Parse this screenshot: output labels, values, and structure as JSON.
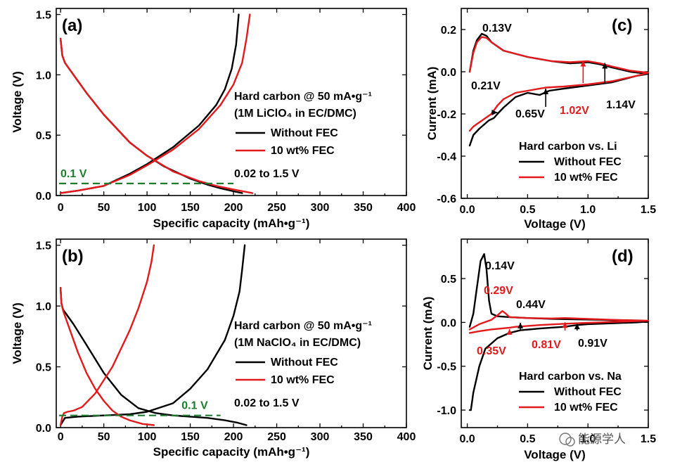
{
  "colors": {
    "black": "#000000",
    "red": "#e31a1c",
    "green": "#1b7d2e",
    "axis": "#000000"
  },
  "watermark": "能源学人",
  "chart_data": [
    {
      "id": "a",
      "type": "line",
      "panel_label": "(a)",
      "xlabel": "Specific capacity (mAh•g⁻¹)",
      "ylabel": "Voltage (V)",
      "xlim": [
        -5,
        400
      ],
      "ylim": [
        0,
        1.55
      ],
      "xticks": [
        0,
        50,
        100,
        150,
        200,
        250,
        300,
        350,
        400
      ],
      "yticks": [
        0.0,
        0.5,
        1.0,
        1.5
      ],
      "ytick_labels": [
        "0.0",
        "0.5",
        "1.0",
        "1.5"
      ],
      "legend": {
        "title": "Hard carbon @ 50 mA•g⁻¹",
        "subtitle": "(1M LiClO₄ in EC/DMC)",
        "items": [
          "Without FEC",
          "10 wt% FEC"
        ],
        "footer": "0.02 to 1.5 V"
      },
      "reference_line": {
        "y": 0.1,
        "label": "0.1 V"
      },
      "series": [
        {
          "name": "Without FEC (discharge)",
          "color": "black",
          "x": [
            0,
            2,
            5,
            10,
            20,
            30,
            50,
            80,
            100,
            120,
            150,
            170,
            185,
            200,
            210
          ],
          "y": [
            1.3,
            1.16,
            1.1,
            1.05,
            0.95,
            0.85,
            0.67,
            0.44,
            0.33,
            0.24,
            0.14,
            0.09,
            0.06,
            0.035,
            0.02
          ]
        },
        {
          "name": "Without FEC (charge)",
          "color": "black",
          "x": [
            0,
            20,
            50,
            80,
            100,
            130,
            160,
            180,
            190,
            198,
            203,
            206
          ],
          "y": [
            0.02,
            0.04,
            0.08,
            0.18,
            0.26,
            0.4,
            0.58,
            0.75,
            0.88,
            1.05,
            1.25,
            1.5
          ]
        },
        {
          "name": "10 wt% FEC (discharge)",
          "color": "red",
          "x": [
            0,
            2,
            5,
            10,
            20,
            30,
            50,
            80,
            100,
            130,
            160,
            180,
            200,
            215,
            222
          ],
          "y": [
            1.3,
            1.16,
            1.1,
            1.05,
            0.95,
            0.85,
            0.67,
            0.44,
            0.33,
            0.2,
            0.12,
            0.08,
            0.05,
            0.03,
            0.02
          ]
        },
        {
          "name": "10 wt% FEC (charge)",
          "color": "red",
          "x": [
            0,
            20,
            50,
            80,
            100,
            130,
            160,
            185,
            200,
            210,
            215,
            219
          ],
          "y": [
            0.02,
            0.04,
            0.08,
            0.17,
            0.25,
            0.38,
            0.55,
            0.75,
            0.92,
            1.1,
            1.3,
            1.5
          ]
        }
      ]
    },
    {
      "id": "b",
      "type": "line",
      "panel_label": "(b)",
      "xlabel": "Specific capacity (mAh•g⁻¹)",
      "ylabel": "Voltage (V)",
      "xlim": [
        -5,
        400
      ],
      "ylim": [
        0,
        1.55
      ],
      "xticks": [
        0,
        50,
        100,
        150,
        200,
        250,
        300,
        350,
        400
      ],
      "yticks": [
        0.0,
        0.5,
        1.0,
        1.5
      ],
      "ytick_labels": [
        "0.0",
        "0.5",
        "1.0",
        "1.5"
      ],
      "legend": {
        "title": "Hard carbon @ 50 mA•g⁻¹",
        "subtitle": "(1M NaClO₄ in EC/DMC)",
        "items": [
          "Without FEC",
          "10 wt% FEC"
        ],
        "footer": "0.02 to 1.5 V"
      },
      "reference_line": {
        "y": 0.1,
        "label": "0.1 V"
      },
      "series": [
        {
          "name": "Without FEC (discharge)",
          "color": "black",
          "x": [
            0,
            1,
            3,
            6,
            15,
            30,
            50,
            70,
            90,
            110,
            130,
            150,
            170,
            190,
            205,
            215
          ],
          "y": [
            1.15,
            1.02,
            0.97,
            0.94,
            0.85,
            0.68,
            0.45,
            0.27,
            0.16,
            0.12,
            0.1,
            0.09,
            0.08,
            0.06,
            0.04,
            0.02
          ]
        },
        {
          "name": "Without FEC (charge)",
          "color": "black",
          "x": [
            0,
            5,
            20,
            50,
            80,
            100,
            130,
            150,
            170,
            190,
            200,
            207,
            210,
            213
          ],
          "y": [
            0.02,
            0.08,
            0.09,
            0.1,
            0.11,
            0.13,
            0.2,
            0.32,
            0.48,
            0.72,
            0.92,
            1.12,
            1.3,
            1.5
          ]
        },
        {
          "name": "10 wt% FEC (discharge)",
          "color": "red",
          "x": [
            0,
            1,
            3,
            6,
            10,
            20,
            30,
            40,
            50,
            60,
            70,
            80,
            95,
            108
          ],
          "y": [
            1.15,
            1.02,
            0.96,
            0.9,
            0.82,
            0.62,
            0.45,
            0.32,
            0.22,
            0.14,
            0.09,
            0.06,
            0.03,
            0.02
          ]
        },
        {
          "name": "10 wt% FEC (charge)",
          "color": "red",
          "x": [
            0,
            2,
            4,
            8,
            15,
            25,
            40,
            60,
            80,
            90,
            100,
            105,
            108
          ],
          "y": [
            0.02,
            0.09,
            0.12,
            0.13,
            0.14,
            0.17,
            0.28,
            0.5,
            0.8,
            0.98,
            1.2,
            1.36,
            1.5
          ]
        }
      ]
    },
    {
      "id": "c",
      "type": "line",
      "panel_label": "(c)",
      "xlabel": "Voltage (V)",
      "ylabel": "Current (mA)",
      "xlim": [
        -0.05,
        1.5
      ],
      "ylim": [
        -0.6,
        0.3
      ],
      "xticks": [
        0.0,
        0.5,
        1.0,
        1.5
      ],
      "xtick_labels": [
        "0.0",
        "0.5",
        "1.0",
        "1.5"
      ],
      "yticks": [
        -0.6,
        -0.4,
        -0.2,
        0.0,
        0.2
      ],
      "ytick_labels": [
        "-0.6",
        "-0.4",
        "-0.2",
        "0.0",
        "0.2"
      ],
      "legend": {
        "title": "Hard carbon vs. Li",
        "items": [
          "Without FEC",
          "10 wt% FEC"
        ]
      },
      "annotations": [
        {
          "text": "0.13V",
          "color": "black"
        },
        {
          "text": "0.21V",
          "color": "black"
        },
        {
          "text": "0.65V",
          "color": "black"
        },
        {
          "text": "1.02V",
          "color": "red"
        },
        {
          "text": "1.14V",
          "color": "black"
        }
      ],
      "series": [
        {
          "name": "Without FEC",
          "color": "black",
          "x": [
            0.02,
            0.05,
            0.08,
            0.12,
            0.16,
            0.2,
            0.3,
            0.5,
            0.7,
            0.85,
            1.0,
            1.1,
            1.2,
            1.35,
            1.5,
            1.4,
            1.2,
            1.0,
            0.8,
            0.68,
            0.6,
            0.5,
            0.4,
            0.3,
            0.25,
            0.22,
            0.18,
            0.1,
            0.05,
            0.02
          ],
          "y": [
            0.0,
            0.1,
            0.15,
            0.18,
            0.17,
            0.14,
            0.1,
            0.07,
            0.05,
            0.04,
            0.045,
            0.035,
            0.02,
            0.0,
            -0.01,
            -0.02,
            -0.05,
            -0.065,
            -0.08,
            -0.09,
            -0.11,
            -0.1,
            -0.12,
            -0.17,
            -0.2,
            -0.22,
            -0.23,
            -0.27,
            -0.3,
            -0.35
          ]
        },
        {
          "name": "10 wt% FEC",
          "color": "red",
          "x": [
            0.02,
            0.05,
            0.08,
            0.12,
            0.16,
            0.2,
            0.3,
            0.5,
            0.7,
            0.85,
            1.0,
            1.1,
            1.2,
            1.35,
            1.5,
            1.4,
            1.2,
            1.0,
            0.8,
            0.65,
            0.5,
            0.4,
            0.3,
            0.25,
            0.2,
            0.15,
            0.1,
            0.05,
            0.02
          ],
          "y": [
            0.0,
            0.09,
            0.14,
            0.165,
            0.16,
            0.14,
            0.1,
            0.07,
            0.05,
            0.045,
            0.05,
            0.04,
            0.025,
            0.005,
            -0.005,
            -0.02,
            -0.045,
            -0.06,
            -0.07,
            -0.075,
            -0.09,
            -0.1,
            -0.13,
            -0.16,
            -0.2,
            -0.22,
            -0.24,
            -0.26,
            -0.28
          ]
        }
      ]
    },
    {
      "id": "d",
      "type": "line",
      "panel_label": "(d)",
      "xlabel": "Voltage (V)",
      "ylabel": "Current (mA)",
      "xlim": [
        -0.05,
        1.5
      ],
      "ylim": [
        -1.2,
        0.95
      ],
      "xticks": [
        0.0,
        0.5,
        1.0,
        1.5
      ],
      "xtick_labels": [
        "0.0",
        "0.5",
        "1.0",
        "1.5"
      ],
      "yticks": [
        -1.0,
        -0.5,
        0.0,
        0.5
      ],
      "ytick_labels": [
        "-1.0",
        "-0.5",
        "0.0",
        "0.5"
      ],
      "legend": {
        "title": "Hard carbon vs. Na",
        "items": [
          "Without FEC",
          "10 wt% FEC"
        ]
      },
      "annotations": [
        {
          "text": "0.14V",
          "color": "black"
        },
        {
          "text": "0.29V",
          "color": "red"
        },
        {
          "text": "0.44V",
          "color": "black"
        },
        {
          "text": "0.35V",
          "color": "red"
        },
        {
          "text": "0.81V",
          "color": "red"
        },
        {
          "text": "0.91V",
          "color": "black"
        }
      ],
      "series": [
        {
          "name": "Without FEC",
          "color": "black",
          "x": [
            0.02,
            0.05,
            0.08,
            0.11,
            0.14,
            0.16,
            0.18,
            0.2,
            0.25,
            0.35,
            0.5,
            0.7,
            0.9,
            1.1,
            1.3,
            1.5,
            1.4,
            1.2,
            1.0,
            0.91,
            0.8,
            0.6,
            0.44,
            0.35,
            0.25,
            0.15,
            0.1,
            0.05,
            0.03,
            0.02
          ],
          "y": [
            -0.05,
            0.1,
            0.4,
            0.7,
            0.78,
            0.6,
            0.25,
            0.1,
            0.07,
            0.06,
            0.05,
            0.04,
            0.035,
            0.03,
            0.02,
            0.01,
            0.0,
            -0.01,
            -0.02,
            -0.03,
            -0.05,
            -0.07,
            -0.09,
            -0.12,
            -0.18,
            -0.3,
            -0.5,
            -0.8,
            -1.0,
            -1.0
          ]
        },
        {
          "name": "10 wt% FEC",
          "color": "red",
          "x": [
            0.02,
            0.1,
            0.2,
            0.25,
            0.29,
            0.32,
            0.35,
            0.5,
            0.7,
            0.81,
            1.0,
            1.2,
            1.5,
            1.3,
            1.0,
            0.81,
            0.6,
            0.4,
            0.35,
            0.2,
            0.1,
            0.02
          ],
          "y": [
            -0.08,
            -0.02,
            0.03,
            0.08,
            0.13,
            0.1,
            0.06,
            0.05,
            0.045,
            0.05,
            0.04,
            0.03,
            0.02,
            0.01,
            -0.005,
            -0.015,
            -0.03,
            -0.05,
            -0.06,
            -0.08,
            -0.1,
            -0.12
          ]
        }
      ]
    }
  ]
}
